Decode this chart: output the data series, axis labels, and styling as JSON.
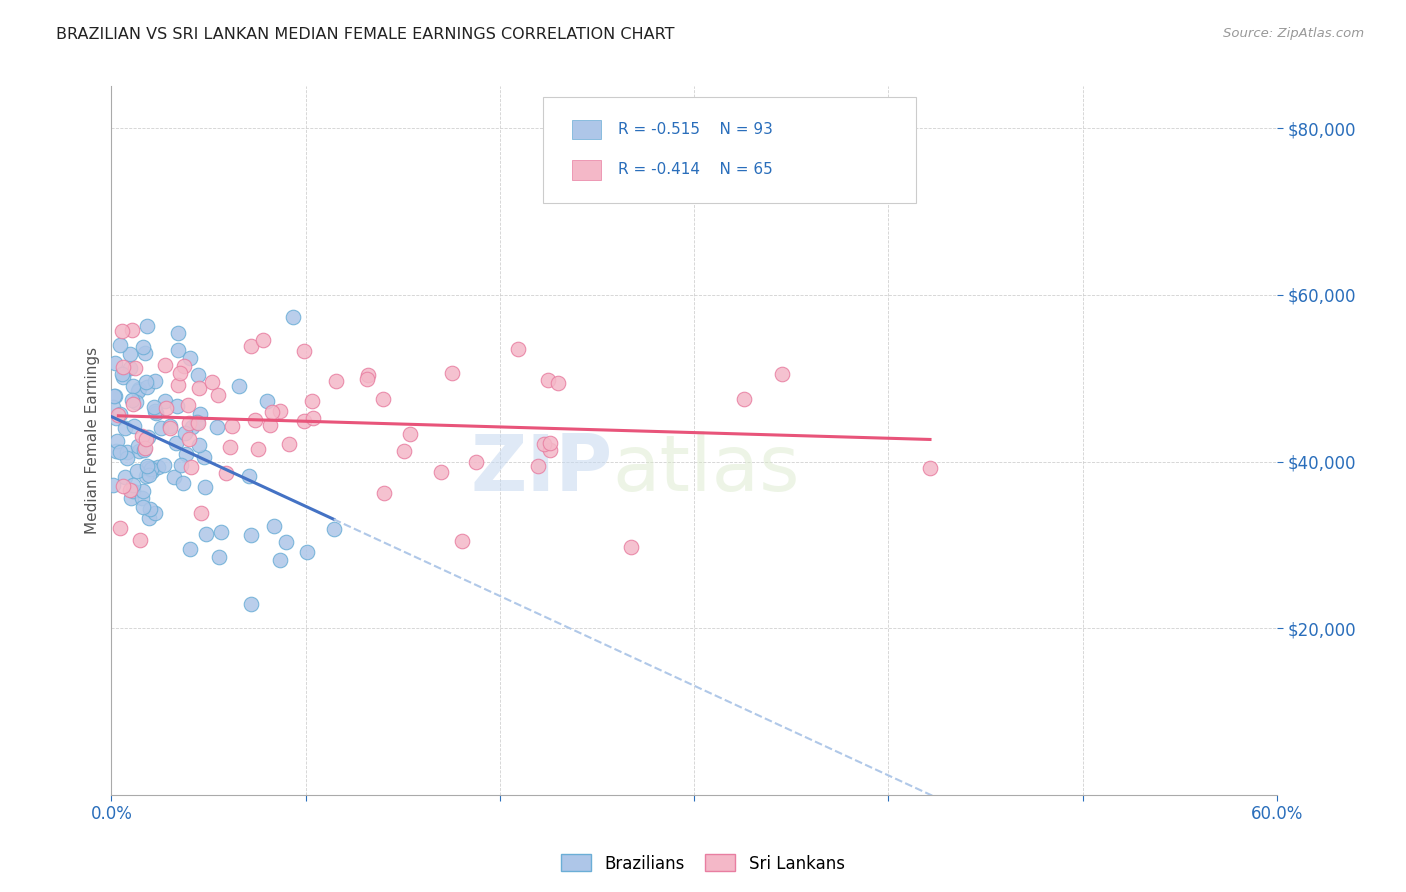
{
  "title": "BRAZILIAN VS SRI LANKAN MEDIAN FEMALE EARNINGS CORRELATION CHART",
  "source": "Source: ZipAtlas.com",
  "ylabel": "Median Female Earnings",
  "y_ticks": [
    20000,
    40000,
    60000,
    80000
  ],
  "y_tick_labels": [
    "$20,000",
    "$40,000",
    "$60,000",
    "$80,000"
  ],
  "x_range": [
    0.0,
    0.6
  ],
  "y_range": [
    0,
    85000
  ],
  "brazil_color": "#aec6e8",
  "brazil_edge": "#6baed6",
  "srilanka_color": "#f4b8c8",
  "srilanka_edge": "#e87ea1",
  "brazil_line_color": "#4472c4",
  "srilanka_line_color": "#e8547a",
  "dashed_line_color": "#b0c8e8",
  "legend_R_brazil": "-0.515",
  "legend_N_brazil": "93",
  "legend_R_srilanka": "-0.414",
  "legend_N_srilanka": "65",
  "watermark_zip": "ZIP",
  "watermark_atlas": "atlas",
  "brazil_N": 93,
  "srilanka_N": 65,
  "title_color": "#222222",
  "axis_color": "#2a6ebb",
  "background_color": "#ffffff",
  "grid_color": "#cccccc"
}
